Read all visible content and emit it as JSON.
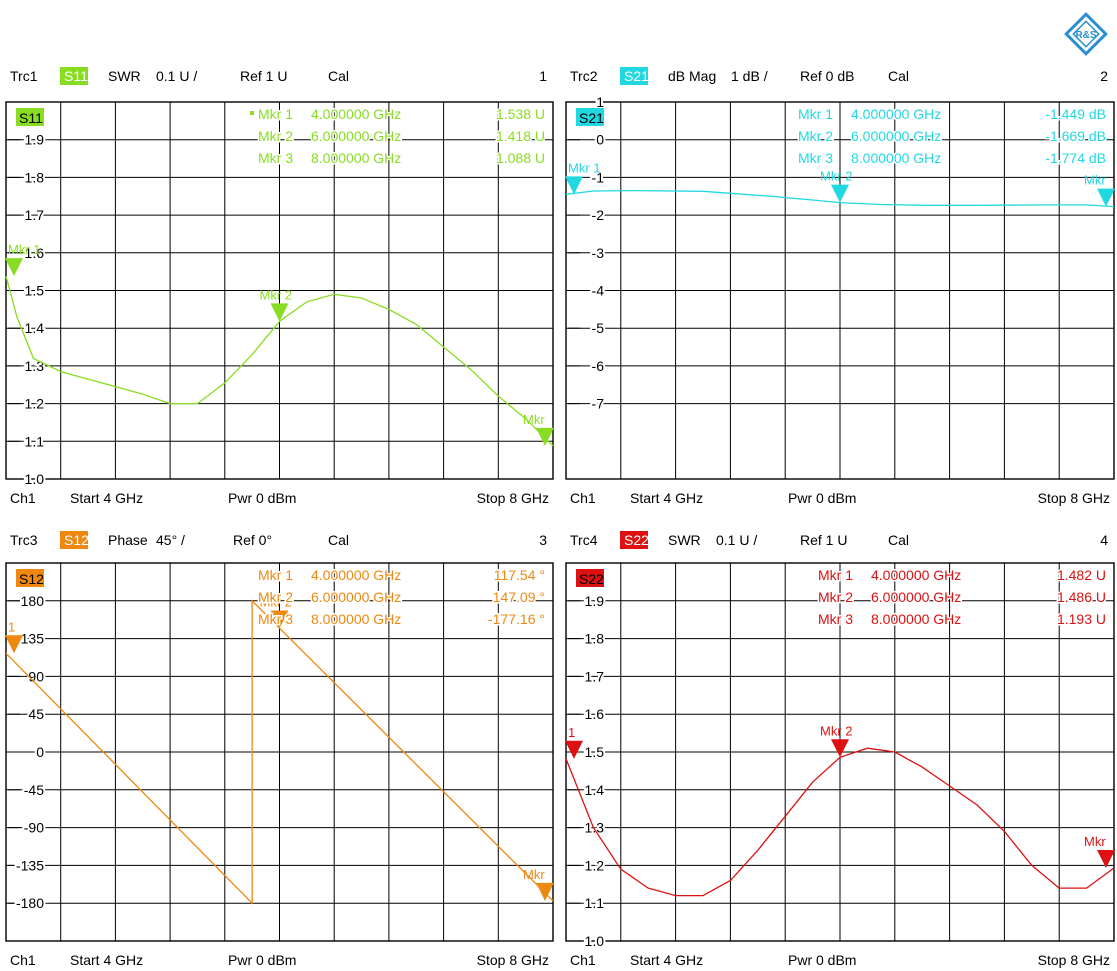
{
  "logo_text": "R&S",
  "colors": {
    "trace1": "#88dd22",
    "trace2": "#22d8e0",
    "trace3": "#ee8811",
    "trace4": "#dd1111",
    "grid": "#000000",
    "logo": "#2a8fd0"
  },
  "chart_data": [
    {
      "type": "line",
      "title": "Trc1",
      "param": "S11",
      "format": "SWR",
      "scale": "0.1 U /",
      "ref": "Ref 1 U",
      "cal": "Cal",
      "diagram_number": "1",
      "trace_label": "S11",
      "channel": "Ch1",
      "start": "Start  4 GHz",
      "power": "Pwr  0 dBm",
      "stop": "Stop  8 GHz",
      "ylim": [
        1.0,
        2.0
      ],
      "xlim": [
        4,
        8
      ],
      "grid": true,
      "ytick_labels": [
        "1.9",
        "1.8",
        "1.7",
        "1.6",
        "1.5",
        "1.4",
        "1.3",
        "1.2",
        "1.1",
        "1.0"
      ],
      "ytick_values": [
        1.9,
        1.8,
        1.7,
        1.6,
        1.5,
        1.4,
        1.3,
        1.2,
        1.1,
        1.0
      ],
      "series": [
        {
          "x": [
            4.0,
            4.08,
            4.2,
            4.4,
            4.6,
            4.8,
            5.0,
            5.2,
            5.4,
            5.6,
            5.8,
            6.0,
            6.2,
            6.4,
            6.6,
            6.8,
            7.0,
            7.2,
            7.4,
            7.6,
            7.8,
            8.0
          ],
          "y": [
            1.538,
            1.43,
            1.32,
            1.285,
            1.265,
            1.245,
            1.225,
            1.2,
            1.2,
            1.255,
            1.33,
            1.418,
            1.47,
            1.49,
            1.48,
            1.45,
            1.41,
            1.35,
            1.29,
            1.22,
            1.16,
            1.088
          ]
        }
      ],
      "markers": [
        {
          "text": "Mkr 1",
          "freq": "4.000000 GHz",
          "value": "1.538 U",
          "x": 4.0,
          "y": 1.538,
          "flag": "Mkr 1",
          "active": true
        },
        {
          "text": "Mkr 2",
          "freq": "6.000000 GHz",
          "value": "1.418 U",
          "x": 6.0,
          "y": 1.418,
          "flag": "Mkr 2",
          "active": false
        },
        {
          "text": "Mkr 3",
          "freq": "8.000000 GHz",
          "value": "1.088 U",
          "x": 8.0,
          "y": 1.088,
          "flag": "Mkr",
          "active": false
        }
      ]
    },
    {
      "type": "line",
      "title": "Trc2",
      "param": "S21",
      "format": "dB Mag",
      "scale": "1 dB /",
      "ref": "Ref 0 dB",
      "cal": "Cal",
      "diagram_number": "2",
      "trace_label": "S21",
      "channel": "Ch1",
      "start": "Start  4 GHz",
      "power": "Pwr  0 dBm",
      "stop": "Stop  8 GHz",
      "ylim": [
        -9,
        1
      ],
      "xlim": [
        4,
        8
      ],
      "grid": true,
      "ytick_labels": [
        "1",
        "0",
        "-1",
        "-2",
        "-3",
        "-4",
        "-5",
        "-6",
        "-7"
      ],
      "ytick_values": [
        1,
        0,
        -1,
        -2,
        -3,
        -4,
        -5,
        -6,
        -7
      ],
      "series": [
        {
          "x": [
            4.0,
            4.2,
            4.5,
            5.0,
            5.5,
            5.8,
            6.0,
            6.3,
            6.6,
            7.0,
            7.5,
            7.8,
            8.0
          ],
          "y": [
            -1.449,
            -1.36,
            -1.35,
            -1.37,
            -1.5,
            -1.6,
            -1.669,
            -1.72,
            -1.74,
            -1.74,
            -1.73,
            -1.73,
            -1.774
          ]
        }
      ],
      "markers": [
        {
          "text": "Mkr 1",
          "freq": "4.000000 GHz",
          "value": "-1.449 dB",
          "x": 4.0,
          "y": -1.449,
          "flag": "Mkr 1",
          "active": false
        },
        {
          "text": "Mkr 2",
          "freq": "6.000000 GHz",
          "value": "-1.669 dB",
          "x": 6.0,
          "y": -1.669,
          "flag": "Mkr 2",
          "active": false
        },
        {
          "text": "Mkr 3",
          "freq": "8.000000 GHz",
          "value": "-1.774 dB",
          "x": 8.0,
          "y": -1.774,
          "flag": "Mkr",
          "active": false
        }
      ]
    },
    {
      "type": "line",
      "title": "Trc3",
      "param": "S12",
      "format": "Phase",
      "scale": "45° /",
      "ref": "Ref 0°",
      "cal": "Cal",
      "diagram_number": "3",
      "trace_label": "S12",
      "channel": "Ch1",
      "start": "Start  4 GHz",
      "power": "Pwr  0 dBm",
      "stop": "Stop  8 GHz",
      "ylim": [
        -225,
        225
      ],
      "xlim": [
        4,
        8
      ],
      "grid": true,
      "ytick_labels": [
        "180",
        "135",
        "90",
        "45",
        "0",
        "-45",
        "-90",
        "-135",
        "-180"
      ],
      "ytick_values": [
        180,
        135,
        90,
        45,
        0,
        -45,
        -90,
        -135,
        -180
      ],
      "series": [
        {
          "x": [
            4.0,
            5.8,
            5.8,
            8.0
          ],
          "y": [
            117.54,
            -180,
            180,
            -177.16
          ]
        }
      ],
      "markers": [
        {
          "text": "Mkr 1",
          "freq": "4.000000 GHz",
          "value": "117.54 °",
          "x": 4.0,
          "y": 117.54,
          "flag": "1",
          "active": false
        },
        {
          "text": "Mkr 2",
          "freq": "6.000000 GHz",
          "value": "147.09 °",
          "x": 6.0,
          "y": 147.09,
          "flag": "Mkr 2",
          "active": false
        },
        {
          "text": "Mkr 3",
          "freq": "8.000000 GHz",
          "value": "-177.16 °",
          "x": 8.0,
          "y": -177.16,
          "flag": "Mkr",
          "active": false
        }
      ]
    },
    {
      "type": "line",
      "title": "Trc4",
      "param": "S22",
      "format": "SWR",
      "scale": "0.1 U /",
      "ref": "Ref 1 U",
      "cal": "Cal",
      "diagram_number": "4",
      "trace_label": "S22",
      "channel": "Ch1",
      "start": "Start  4 GHz",
      "power": "Pwr  0 dBm",
      "stop": "Stop  8 GHz",
      "ylim": [
        1.0,
        2.0
      ],
      "xlim": [
        4,
        8
      ],
      "grid": true,
      "ytick_labels": [
        "1.9",
        "1.8",
        "1.7",
        "1.6",
        "1.5",
        "1.4",
        "1.3",
        "1.2",
        "1.1",
        "1.0"
      ],
      "ytick_values": [
        1.9,
        1.8,
        1.7,
        1.6,
        1.5,
        1.4,
        1.3,
        1.2,
        1.1,
        1.0
      ],
      "series": [
        {
          "x": [
            4.0,
            4.2,
            4.4,
            4.6,
            4.8,
            5.0,
            5.2,
            5.4,
            5.6,
            5.8,
            6.0,
            6.2,
            6.4,
            6.6,
            6.8,
            7.0,
            7.2,
            7.4,
            7.6,
            7.8,
            8.0
          ],
          "y": [
            1.482,
            1.3,
            1.19,
            1.14,
            1.12,
            1.12,
            1.16,
            1.24,
            1.33,
            1.42,
            1.486,
            1.51,
            1.5,
            1.46,
            1.41,
            1.36,
            1.29,
            1.2,
            1.14,
            1.14,
            1.193
          ]
        }
      ],
      "markers": [
        {
          "text": "Mkr 1",
          "freq": "4.000000 GHz",
          "value": "1.482 U",
          "x": 4.0,
          "y": 1.482,
          "flag": "1",
          "active": false
        },
        {
          "text": "Mkr 2",
          "freq": "6.000000 GHz",
          "value": "1.486 U",
          "x": 6.0,
          "y": 1.486,
          "flag": "Mkr 2",
          "active": false
        },
        {
          "text": "Mkr 3",
          "freq": "8.000000 GHz",
          "value": "1.193 U",
          "x": 8.0,
          "y": 1.193,
          "flag": "Mkr",
          "active": false
        }
      ]
    }
  ]
}
